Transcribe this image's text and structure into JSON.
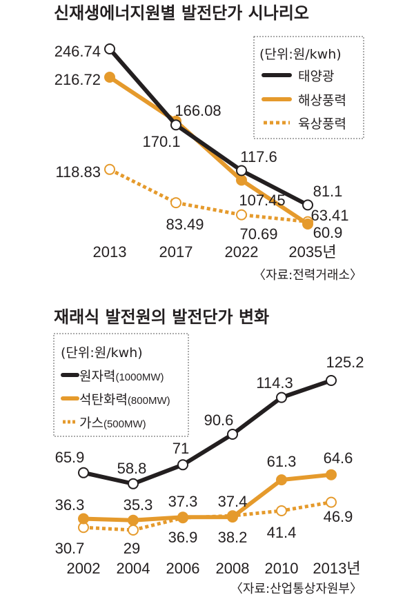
{
  "colors": {
    "black": "#231f20",
    "orange": "#e59a2c"
  },
  "chart_data": [
    {
      "type": "line",
      "title": "신재생에너지원별 발전단가 시나리오",
      "unit_label": "(단위:원/kwh)",
      "source": "〈자료:전력거래소〉",
      "categories": [
        "2013",
        "2017",
        "2022",
        "2035년"
      ],
      "ylim": [
        60.9,
        246.74
      ],
      "grid": false,
      "legend_position": "top-right",
      "series": [
        {
          "name": "태양광",
          "style": "solid-black",
          "values": [
            246.74,
            166.08,
            117.6,
            81.1
          ],
          "labels": [
            "246.74",
            "166.08",
            "117.6",
            "81.1"
          ]
        },
        {
          "name": "해상풍력",
          "style": "solid-orange",
          "values": [
            216.72,
            170.1,
            107.45,
            60.9
          ],
          "labels": [
            "216.72",
            "170.1",
            "107.45",
            "60.9"
          ]
        },
        {
          "name": "육상풍력",
          "style": "dotted-orange",
          "values": [
            118.83,
            83.49,
            70.69,
            63.41
          ],
          "labels": [
            "118.83",
            "83.49",
            "70.69",
            "63.41"
          ]
        }
      ]
    },
    {
      "type": "line",
      "title": "재래식 발전원의 발전단가 변화",
      "unit_label": "(단위:원/kwh)",
      "source": "〈자료:산업통상자원부〉",
      "categories": [
        "2002",
        "2004",
        "2006",
        "2008",
        "2010",
        "2013년"
      ],
      "ylim": [
        29,
        125.2
      ],
      "grid": false,
      "legend_position": "top-left",
      "series": [
        {
          "name": "원자력",
          "sub": "(1000MW)",
          "style": "solid-black",
          "values": [
            65.9,
            58.8,
            71,
            90.6,
            114.3,
            125.2
          ],
          "labels": [
            "65.9",
            "58.8",
            "71",
            "90.6",
            "114.3",
            "125.2"
          ]
        },
        {
          "name": "석탄화력",
          "sub": "(800MW)",
          "style": "solid-orange",
          "values": [
            36.3,
            35.3,
            37.3,
            37.4,
            61.3,
            64.6
          ],
          "labels": [
            "36.3",
            "35.3",
            "37.3",
            "37.4",
            "61.3",
            "64.6"
          ]
        },
        {
          "name": "가스",
          "sub": "(500MW)",
          "style": "dotted-orange",
          "values": [
            30.7,
            29,
            36.9,
            38.2,
            41.4,
            46.9
          ],
          "labels": [
            "30.7",
            "29",
            "36.9",
            "38.2",
            "41.4",
            "46.9"
          ]
        }
      ]
    }
  ]
}
